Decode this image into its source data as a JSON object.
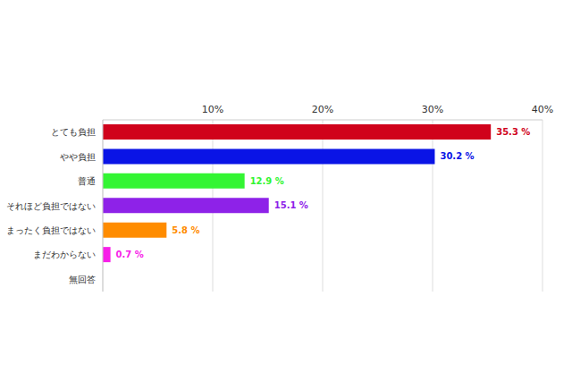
{
  "chart_data": {
    "type": "bar",
    "orientation": "horizontal",
    "categories": [
      "とても負担",
      "やや負担",
      "普通",
      "それほど負担ではない",
      "まったく負担ではない",
      "まだわからない",
      "無回答"
    ],
    "values": [
      35.3,
      30.2,
      12.9,
      15.1,
      5.8,
      0.7,
      0
    ],
    "value_labels": [
      "35.3 %",
      "30.2 %",
      "12.9 %",
      "15.1 %",
      "5.8 %",
      "0.7 %",
      null
    ],
    "colors": [
      "#d0021b",
      "#0a14e6",
      "#33f533",
      "#8e22e8",
      "#ff8c00",
      "#f71ee8",
      "#cccccc"
    ],
    "xlim": [
      0,
      40
    ],
    "xticks": [
      {
        "value": 10,
        "label": "10%"
      },
      {
        "value": 20,
        "label": "20%"
      },
      {
        "value": 30,
        "label": "30%"
      },
      {
        "value": 40,
        "label": "40%"
      }
    ],
    "grid": true,
    "data_labels": true
  }
}
